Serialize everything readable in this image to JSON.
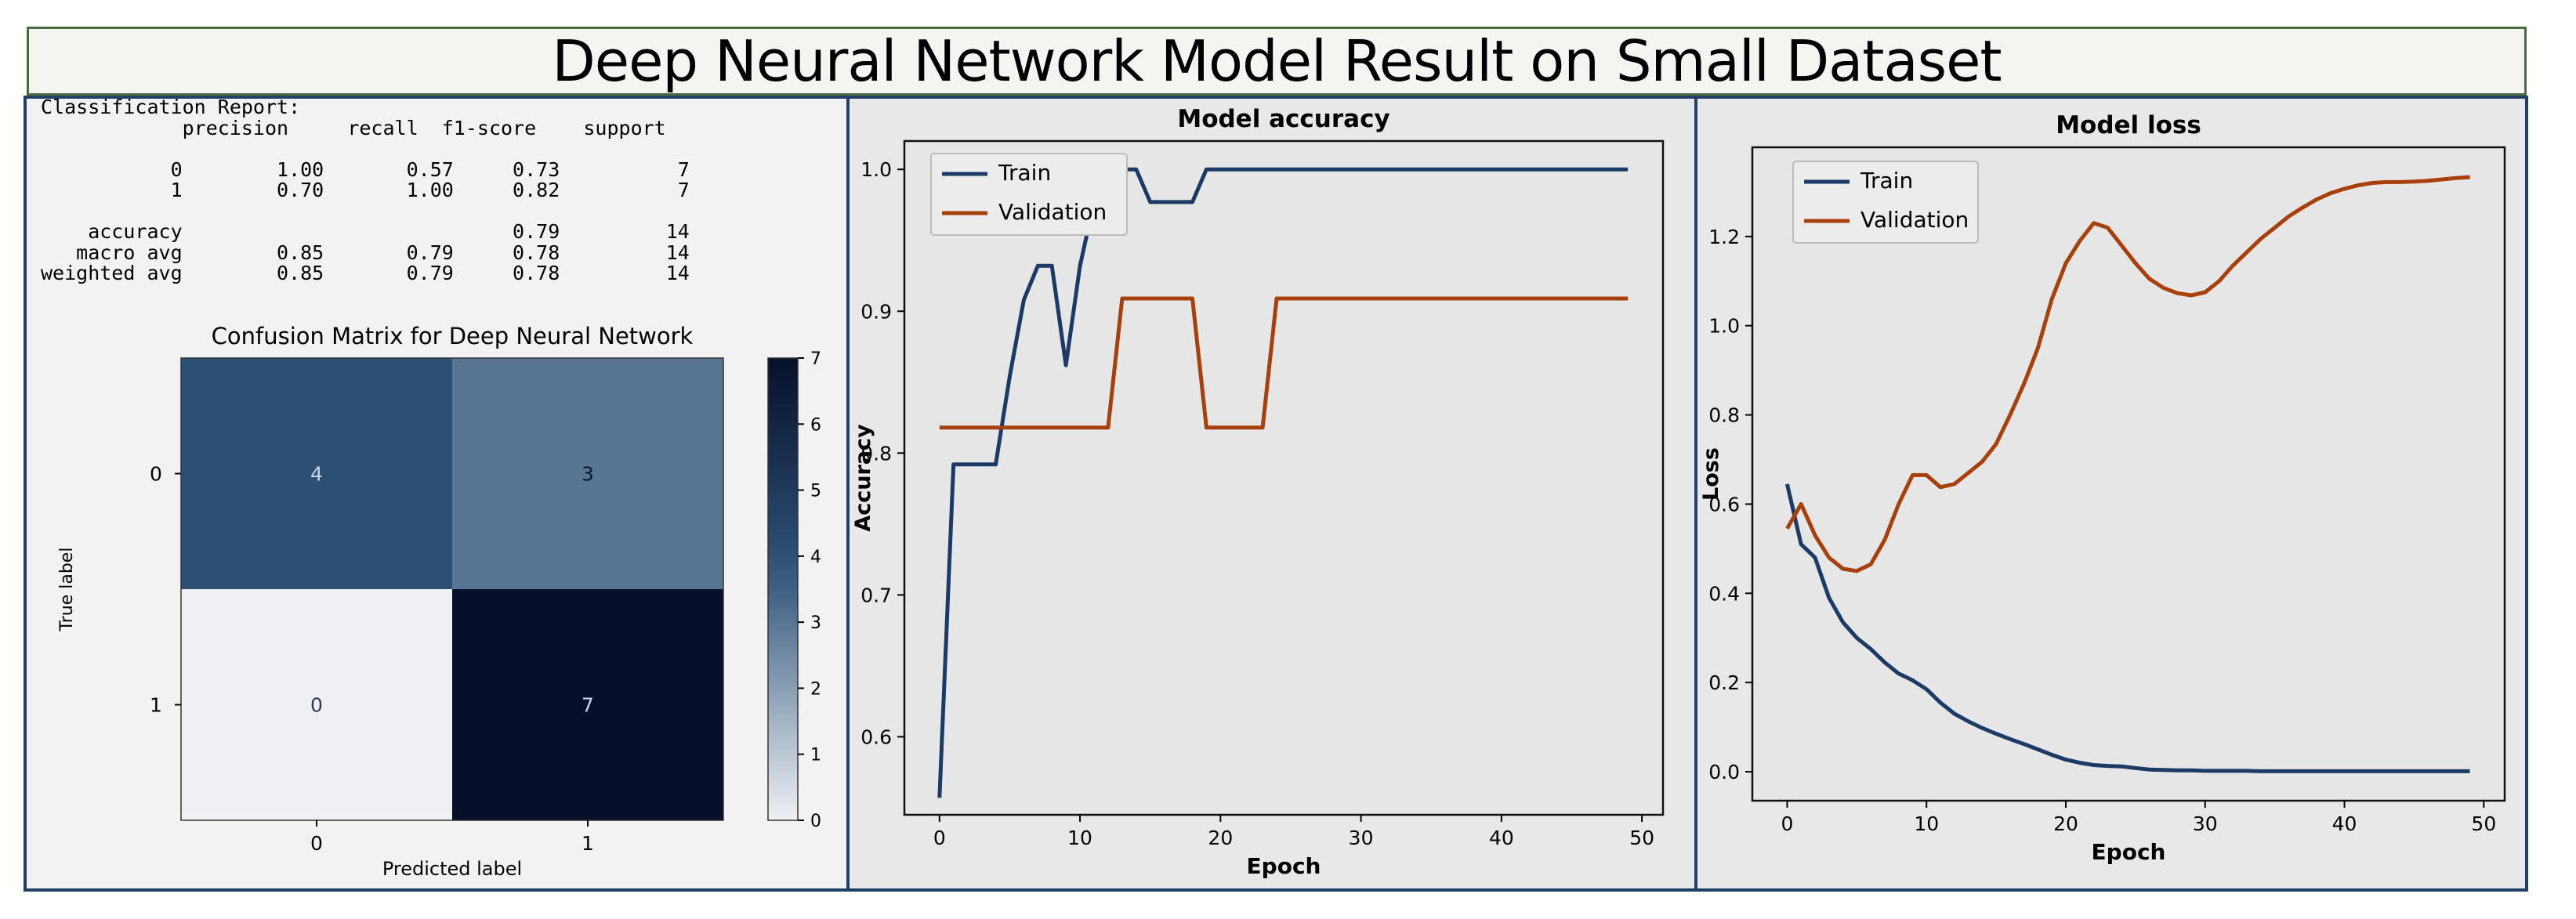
{
  "title": "Deep Neural Network Model Result on Small Dataset",
  "classification_report": {
    "heading": "Classification Report:",
    "columns": [
      "precision",
      "recall",
      "f1-score",
      "support"
    ],
    "rows": [
      {
        "label": "0",
        "precision": "1.00",
        "recall": "0.57",
        "f1": "0.73",
        "support": "7"
      },
      {
        "label": "1",
        "precision": "0.70",
        "recall": "1.00",
        "f1": "0.82",
        "support": "7"
      },
      {
        "label": "accuracy",
        "precision": "",
        "recall": "",
        "f1": "0.79",
        "support": "14"
      },
      {
        "label": "macro avg",
        "precision": "0.85",
        "recall": "0.79",
        "f1": "0.78",
        "support": "14"
      },
      {
        "label": "weighted avg",
        "precision": "0.85",
        "recall": "0.79",
        "f1": "0.78",
        "support": "14"
      }
    ]
  },
  "colors": {
    "train": "#1b3a66",
    "validation": "#a8400c",
    "cm_low": "#eef0f3",
    "cm_high": "#07102a"
  },
  "chart_data": [
    {
      "type": "heatmap",
      "title": "Confusion Matrix for Deep Neural Network",
      "xlabel": "Predicted label",
      "ylabel": "True label",
      "x_categories": [
        "0",
        "1"
      ],
      "y_categories": [
        "0",
        "1"
      ],
      "values": [
        [
          4,
          3
        ],
        [
          0,
          7
        ]
      ],
      "colorbar": {
        "min": 0,
        "max": 7,
        "ticks": [
          0,
          1,
          2,
          3,
          4,
          5,
          6,
          7
        ]
      }
    },
    {
      "type": "line",
      "title": "Model accuracy",
      "xlabel": "Epoch",
      "ylabel": "Accuracy",
      "xlim": [
        -2.5,
        51.5
      ],
      "ylim": [
        0.545,
        1.02
      ],
      "xticks": [
        0,
        10,
        20,
        30,
        40,
        50
      ],
      "yticks": [
        0.6,
        0.7,
        0.8,
        0.9,
        1.0
      ],
      "legend": "top-left",
      "x": [
        0,
        1,
        2,
        3,
        4,
        5,
        6,
        7,
        8,
        9,
        10,
        11,
        12,
        13,
        14,
        15,
        16,
        17,
        18,
        19,
        20,
        21,
        22,
        23,
        24,
        25,
        26,
        27,
        28,
        29,
        30,
        31,
        32,
        33,
        34,
        35,
        36,
        37,
        38,
        39,
        40,
        41,
        42,
        43,
        44,
        45,
        46,
        47,
        48,
        49
      ],
      "series": [
        {
          "name": "Train",
          "values": [
            0.557,
            0.792,
            0.792,
            0.792,
            0.792,
            0.854,
            0.908,
            0.932,
            0.932,
            0.862,
            0.932,
            0.977,
            1.0,
            1.0,
            1.0,
            0.977,
            0.977,
            0.977,
            0.977,
            1.0,
            1.0,
            1.0,
            1.0,
            1.0,
            1.0,
            1.0,
            1.0,
            1.0,
            1.0,
            1.0,
            1.0,
            1.0,
            1.0,
            1.0,
            1.0,
            1.0,
            1.0,
            1.0,
            1.0,
            1.0,
            1.0,
            1.0,
            1.0,
            1.0,
            1.0,
            1.0,
            1.0,
            1.0,
            1.0,
            1.0
          ]
        },
        {
          "name": "Validation",
          "values": [
            0.818,
            0.818,
            0.818,
            0.818,
            0.818,
            0.818,
            0.818,
            0.818,
            0.818,
            0.818,
            0.818,
            0.818,
            0.818,
            0.909,
            0.909,
            0.909,
            0.909,
            0.909,
            0.909,
            0.818,
            0.818,
            0.818,
            0.818,
            0.818,
            0.909,
            0.909,
            0.909,
            0.909,
            0.909,
            0.909,
            0.909,
            0.909,
            0.909,
            0.909,
            0.909,
            0.909,
            0.909,
            0.909,
            0.909,
            0.909,
            0.909,
            0.909,
            0.909,
            0.909,
            0.909,
            0.909,
            0.909,
            0.909,
            0.909,
            0.909
          ]
        }
      ]
    },
    {
      "type": "line",
      "title": "Model loss",
      "xlabel": "Epoch",
      "ylabel": "Loss",
      "xlim": [
        -2.5,
        51.5
      ],
      "ylim": [
        -0.065,
        1.4
      ],
      "xticks": [
        0,
        10,
        20,
        30,
        40,
        50
      ],
      "yticks": [
        0.0,
        0.2,
        0.4,
        0.6,
        0.8,
        1.0,
        1.2
      ],
      "legend": "top-left",
      "x": [
        0,
        1,
        2,
        3,
        4,
        5,
        6,
        7,
        8,
        9,
        10,
        11,
        12,
        13,
        14,
        15,
        16,
        17,
        18,
        19,
        20,
        21,
        22,
        23,
        24,
        25,
        26,
        27,
        28,
        29,
        30,
        31,
        32,
        33,
        34,
        35,
        36,
        37,
        38,
        39,
        40,
        41,
        42,
        43,
        44,
        45,
        46,
        47,
        48,
        49
      ],
      "series": [
        {
          "name": "Train",
          "values": [
            0.645,
            0.51,
            0.48,
            0.39,
            0.335,
            0.3,
            0.275,
            0.245,
            0.22,
            0.205,
            0.185,
            0.155,
            0.13,
            0.113,
            0.098,
            0.085,
            0.073,
            0.062,
            0.05,
            0.038,
            0.027,
            0.02,
            0.015,
            0.013,
            0.012,
            0.008,
            0.005,
            0.004,
            0.003,
            0.003,
            0.002,
            0.002,
            0.002,
            0.002,
            0.001,
            0.001,
            0.001,
            0.001,
            0.001,
            0.001,
            0.001,
            0.001,
            0.001,
            0.001,
            0.001,
            0.001,
            0.001,
            0.001,
            0.001,
            0.001
          ]
        },
        {
          "name": "Validation",
          "values": [
            0.545,
            0.6,
            0.53,
            0.48,
            0.455,
            0.45,
            0.465,
            0.52,
            0.6,
            0.665,
            0.665,
            0.638,
            0.645,
            0.67,
            0.695,
            0.735,
            0.8,
            0.87,
            0.95,
            1.06,
            1.14,
            1.19,
            1.23,
            1.22,
            1.18,
            1.14,
            1.105,
            1.085,
            1.073,
            1.068,
            1.075,
            1.1,
            1.135,
            1.165,
            1.195,
            1.22,
            1.245,
            1.265,
            1.283,
            1.297,
            1.307,
            1.315,
            1.32,
            1.322,
            1.322,
            1.323,
            1.325,
            1.328,
            1.331,
            1.333
          ]
        }
      ]
    }
  ]
}
